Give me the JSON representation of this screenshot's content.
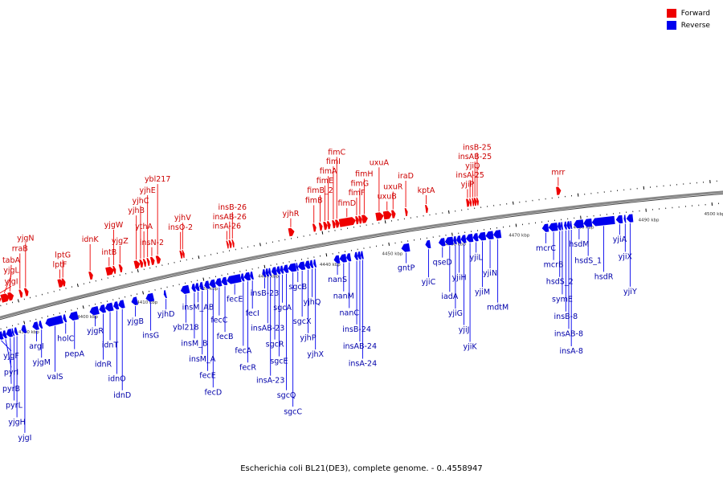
{
  "caption": "Escherichia coli BL21(DE3), complete genome. - 0..4558947",
  "legend": [
    {
      "label": "Forward",
      "color": "#ee0000"
    },
    {
      "label": "Reverse",
      "color": "#0000ee"
    }
  ],
  "colors": {
    "forward": "#ee0000",
    "reverse": "#0000ee",
    "backbone": "#888888"
  },
  "axis": {
    "start_kbp": 4385,
    "end_kbp": 4503,
    "tick_step_kbp": 10,
    "unit": "kbp"
  },
  "forward_genes": [
    {
      "name": "yjgI",
      "kb": 4386.2,
      "len": 1.2
    },
    {
      "name": "yjgL",
      "kb": 4387.4,
      "len": 1.4
    },
    {
      "name": "tabA",
      "kb": 4388.6,
      "len": 0.9
    },
    {
      "name": "rraB",
      "kb": 4390.5,
      "len": 0.5
    },
    {
      "name": "yjgN",
      "kb": 4391.4,
      "len": 0.6
    },
    {
      "name": "lptF",
      "kb": 4397.0,
      "len": 0.9
    },
    {
      "name": "lptG",
      "kb": 4397.7,
      "len": 0.5
    },
    {
      "name": "idnK",
      "kb": 4402.2,
      "len": 0.6
    },
    {
      "name": "intB",
      "kb": 4405.0,
      "len": 1.3
    },
    {
      "name": "yjgW",
      "kb": 4406.2,
      "len": 0.4
    },
    {
      "name": "yjgZ",
      "kb": 4407.2,
      "len": 0.5
    },
    {
      "name": "yjhB",
      "kb": 4409.7,
      "len": 0.9
    },
    {
      "name": "yjhC",
      "kb": 4410.6,
      "len": 0.5
    },
    {
      "name": "ythA",
      "kb": 4411.2,
      "len": 0.4
    },
    {
      "name": "yjhE",
      "kb": 4411.8,
      "len": 0.4
    },
    {
      "name": "insN-2",
      "kb": 4412.4,
      "len": 0.6
    },
    {
      "name": "ybl217",
      "kb": 4413.3,
      "len": 0.7
    },
    {
      "name": "insO-2",
      "kb": 4417.2,
      "len": 0.4
    },
    {
      "name": "yjhV",
      "kb": 4417.6,
      "len": 0.3
    },
    {
      "name": "insA-26",
      "kb": 4424.8,
      "len": 0.3
    },
    {
      "name": "insAB-26",
      "kb": 4425.2,
      "len": 0.4
    },
    {
      "name": "insB-26",
      "kb": 4425.7,
      "len": 0.3
    },
    {
      "name": "yjhR",
      "kb": 4434.8,
      "len": 0.9
    },
    {
      "name": "fimB",
      "kb": 4438.7,
      "len": 0.5
    },
    {
      "name": "fimB_2",
      "kb": 4439.7,
      "len": 0.5
    },
    {
      "name": "fimE",
      "kb": 4440.4,
      "len": 0.6
    },
    {
      "name": "fimA",
      "kb": 4441.0,
      "len": 0.5
    },
    {
      "name": "fimI",
      "kb": 4441.8,
      "len": 0.5
    },
    {
      "name": "fimC",
      "kb": 4442.3,
      "len": 0.6
    },
    {
      "name": "fimD",
      "kb": 4442.9,
      "len": 2.6
    },
    {
      "name": "fimF",
      "kb": 4445.5,
      "len": 0.5
    },
    {
      "name": "fimG",
      "kb": 4446.0,
      "len": 0.5
    },
    {
      "name": "fimH",
      "kb": 4446.5,
      "len": 0.9
    },
    {
      "name": "uxuA",
      "kb": 4448.7,
      "len": 1.2
    },
    {
      "name": "uxuB",
      "kb": 4449.9,
      "len": 1.3
    },
    {
      "name": "uxuR",
      "kb": 4451.2,
      "len": 0.6
    },
    {
      "name": "iraD",
      "kb": 4453.3,
      "len": 0.4
    },
    {
      "name": "kptA",
      "kb": 4456.5,
      "len": 0.4
    },
    {
      "name": "yjiP",
      "kb": 4462.9,
      "len": 0.5
    },
    {
      "name": "insA-25",
      "kb": 4463.4,
      "len": 0.3
    },
    {
      "name": "yjiQ",
      "kb": 4463.8,
      "len": 0.3
    },
    {
      "name": "insAB-25",
      "kb": 4464.1,
      "len": 0.4
    },
    {
      "name": "insB-25",
      "kb": 4464.5,
      "len": 0.3
    },
    {
      "name": "mrr",
      "kb": 4476.8,
      "len": 0.7
    }
  ],
  "reverse_genes": [
    {
      "name": "yjgF",
      "kb": 4385.1,
      "len": 0.9
    },
    {
      "name": "pyrI",
      "kb": 4386.0,
      "len": 0.6
    },
    {
      "name": "pyrB",
      "kb": 4386.6,
      "len": 1.0
    },
    {
      "name": "pyrL",
      "kb": 4387.6,
      "len": 0.3
    },
    {
      "name": "yjgH",
      "kb": 4388.0,
      "len": 0.5
    },
    {
      "name": "yjgI",
      "kb": 4389.2,
      "len": 0.8
    },
    {
      "name": "argI",
      "kb": 4391.1,
      "len": 1.0
    },
    {
      "name": "yjgM",
      "kb": 4392.2,
      "len": 0.5
    },
    {
      "name": "valS",
      "kb": 4393.3,
      "len": 2.9
    },
    {
      "name": "holC",
      "kb": 4396.3,
      "len": 0.5
    },
    {
      "name": "pepA",
      "kb": 4397.3,
      "len": 1.5
    },
    {
      "name": "yjgR",
      "kb": 4400.8,
      "len": 1.5
    },
    {
      "name": "idnR",
      "kb": 4402.4,
      "len": 1.0
    },
    {
      "name": "idnT",
      "kb": 4403.4,
      "len": 1.3
    },
    {
      "name": "idnO",
      "kb": 4404.8,
      "len": 0.8
    },
    {
      "name": "idnD",
      "kb": 4405.6,
      "len": 1.0
    },
    {
      "name": "yjgB",
      "kb": 4407.8,
      "len": 1.0
    },
    {
      "name": "insG",
      "kb": 4410.2,
      "len": 1.3
    },
    {
      "name": "yjhD",
      "kb": 4413.2,
      "len": 0.4
    },
    {
      "name": "ybl218",
      "kb": 4416.0,
      "len": 1.4
    },
    {
      "name": "insM_B",
      "kb": 4417.8,
      "len": 0.6
    },
    {
      "name": "insM_AB",
      "kb": 4418.4,
      "len": 0.6
    },
    {
      "name": "insM_A",
      "kb": 4419.1,
      "len": 0.6
    },
    {
      "name": "fecE",
      "kb": 4419.9,
      "len": 0.8
    },
    {
      "name": "fecD",
      "kb": 4420.7,
      "len": 1.0
    },
    {
      "name": "fecC",
      "kb": 4421.7,
      "len": 1.0
    },
    {
      "name": "fecB",
      "kb": 4422.7,
      "len": 0.9
    },
    {
      "name": "fecE",
      "kb": 4423.6,
      "len": 2.3
    },
    {
      "name": "fecA",
      "kb": 4425.9,
      "len": 0.5
    },
    {
      "name": "fecR",
      "kb": 4426.4,
      "len": 1.0
    },
    {
      "name": "fecI",
      "kb": 4427.4,
      "len": 0.5
    },
    {
      "name": "insB-23",
      "kb": 4429.4,
      "len": 0.5
    },
    {
      "name": "insAB-23",
      "kb": 4429.9,
      "len": 0.5
    },
    {
      "name": "insA-23",
      "kb": 4430.4,
      "len": 0.4
    },
    {
      "name": "sgcR",
      "kb": 4430.9,
      "len": 0.8
    },
    {
      "name": "sgcE",
      "kb": 4431.7,
      "len": 0.6
    },
    {
      "name": "sgcA",
      "kb": 4432.3,
      "len": 0.5
    },
    {
      "name": "sgcQ",
      "kb": 4432.8,
      "len": 0.8
    },
    {
      "name": "sgcC",
      "kb": 4433.6,
      "len": 1.3
    },
    {
      "name": "sgcB",
      "kb": 4434.9,
      "len": 0.3
    },
    {
      "name": "sgcX",
      "kb": 4435.2,
      "len": 1.1
    },
    {
      "name": "yjhP",
      "kb": 4436.3,
      "len": 0.8
    },
    {
      "name": "yjhQ",
      "kb": 4437.1,
      "len": 0.5
    },
    {
      "name": "yjhX",
      "kb": 4437.7,
      "len": 0.4
    },
    {
      "name": "nanS",
      "kb": 4441.0,
      "len": 0.9
    },
    {
      "name": "nanM",
      "kb": 4441.9,
      "len": 1.1
    },
    {
      "name": "nanC",
      "kb": 4443.0,
      "len": 0.7
    },
    {
      "name": "insB-24",
      "kb": 4444.3,
      "len": 0.5
    },
    {
      "name": "insAB-24",
      "kb": 4444.8,
      "len": 0.5
    },
    {
      "name": "insA-24",
      "kb": 4445.3,
      "len": 0.4
    },
    {
      "name": "gntP",
      "kb": 4451.8,
      "len": 1.3
    },
    {
      "name": "yjiC",
      "kb": 4455.6,
      "len": 0.8
    },
    {
      "name": "qseD",
      "kb": 4457.7,
      "len": 1.0
    },
    {
      "name": "iadA",
      "kb": 4458.7,
      "len": 1.3
    },
    {
      "name": "yjiG",
      "kb": 4460.0,
      "len": 0.5
    },
    {
      "name": "yjiH",
      "kb": 4460.5,
      "len": 0.7
    },
    {
      "name": "yjiJ",
      "kb": 4461.2,
      "len": 0.8
    },
    {
      "name": "yjiK",
      "kb": 4462.0,
      "len": 1.1
    },
    {
      "name": "yjiL",
      "kb": 4463.1,
      "len": 0.8
    },
    {
      "name": "yjiM",
      "kb": 4463.9,
      "len": 1.2
    },
    {
      "name": "yjiN",
      "kb": 4465.1,
      "len": 1.2
    },
    {
      "name": "mdtM",
      "kb": 4466.3,
      "len": 1.2
    },
    {
      "name": "mcrC",
      "kb": 4473.9,
      "len": 1.0
    },
    {
      "name": "mcrB",
      "kb": 4474.9,
      "len": 1.4
    },
    {
      "name": "hsdS_2",
      "kb": 4476.3,
      "len": 0.5
    },
    {
      "name": "symE",
      "kb": 4476.8,
      "len": 0.3
    },
    {
      "name": "insB-8",
      "kb": 4477.3,
      "len": 0.4
    },
    {
      "name": "insAB-8",
      "kb": 4477.7,
      "len": 0.5
    },
    {
      "name": "insA-8",
      "kb": 4478.2,
      "len": 0.3
    },
    {
      "name": "hsdM",
      "kb": 4478.8,
      "len": 1.5
    },
    {
      "name": "hsdS_1",
      "kb": 4480.3,
      "len": 1.3
    },
    {
      "name": "hsdR",
      "kb": 4481.6,
      "len": 3.5
    },
    {
      "name": "yjiA",
      "kb": 4485.3,
      "len": 1.0
    },
    {
      "name": "yjiX",
      "kb": 4486.5,
      "len": 0.3
    },
    {
      "name": "yjiY",
      "kb": 4486.9,
      "len": 1.0
    }
  ]
}
